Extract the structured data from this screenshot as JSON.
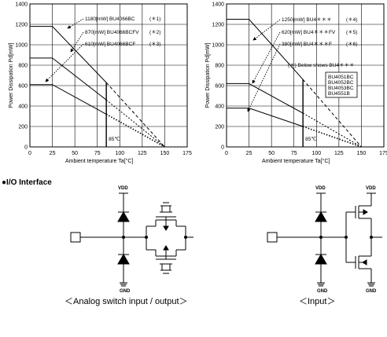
{
  "chart_data": [
    {
      "type": "line",
      "xlabel_main": "Ambient",
      "xlabel_sub": "temperature",
      "xlabel_unit": "Ta[°C]",
      "ylabel": "Power Dissipation Pd[mW]",
      "xlim": [
        0,
        175
      ],
      "ylim": [
        0,
        1400
      ],
      "x_ticks": [
        "0",
        "25",
        "50",
        "75",
        "100",
        "125",
        "150",
        "175"
      ],
      "y_ticks": [
        "0",
        "200",
        "400",
        "600",
        "800",
        "1000",
        "1200",
        "1400"
      ],
      "grid": true,
      "series": [
        {
          "name": "1180[mW] BU4066BC",
          "tag": "(＊1)",
          "x": [
            0,
            25,
            85,
            150
          ],
          "y": [
            1180,
            1180,
            630,
            0
          ]
        },
        {
          "name": "870[mW] BU4066BCFV",
          "tag": "(＊2)",
          "x": [
            0,
            25,
            85,
            150
          ],
          "y": [
            870,
            870,
            460,
            0
          ]
        },
        {
          "name": "610[mW] BU4066BCF",
          "tag": "(＊3)",
          "x": [
            0,
            25,
            85,
            150
          ],
          "y": [
            610,
            610,
            320,
            0
          ]
        }
      ],
      "annotations": [
        "85℃"
      ]
    },
    {
      "type": "line",
      "xlabel_main": "Ambient",
      "xlabel_sub": "temperature",
      "xlabel_unit": "Ta[°C]",
      "ylabel": "Power Dissipation Pd[mW]",
      "xlim": [
        0,
        175
      ],
      "ylim": [
        0,
        1400
      ],
      "x_ticks": [
        "0",
        "25",
        "50",
        "75",
        "100",
        "125",
        "150",
        "175"
      ],
      "y_ticks": [
        "0",
        "200",
        "400",
        "600",
        "800",
        "1000",
        "1200",
        "1400"
      ],
      "grid": true,
      "series": [
        {
          "name": "1250[mW] BU4＊＊＊",
          "tag": "(＊4)",
          "x": [
            0,
            25,
            85,
            150
          ],
          "y": [
            1250,
            1250,
            660,
            0
          ]
        },
        {
          "name": "620[mW] BU4＊＊＊FV",
          "tag": "(＊5)",
          "x": [
            0,
            25,
            85,
            150
          ],
          "y": [
            620,
            620,
            330,
            0
          ]
        },
        {
          "name": "380[mW] BU4＊＊＊F",
          "tag": "(＊6)",
          "x": [
            0,
            25,
            85,
            150
          ],
          "y": [
            380,
            380,
            200,
            0
          ]
        }
      ],
      "note": "(＊) Below shows BU4＊＊＊",
      "parts": [
        "BU4051BC",
        "BU4052BC",
        "BU4053BC",
        "BU4551B"
      ],
      "annotations": [
        "85℃"
      ]
    }
  ],
  "section": {
    "title": "●I/O Interface"
  },
  "circuits": {
    "left": {
      "vdd": "VDD",
      "gnd": "GND",
      "caption": "＜Analog switch input / output＞"
    },
    "right": {
      "vdd": "VDD",
      "gnd": "GND",
      "caption": "＜Input＞"
    }
  }
}
